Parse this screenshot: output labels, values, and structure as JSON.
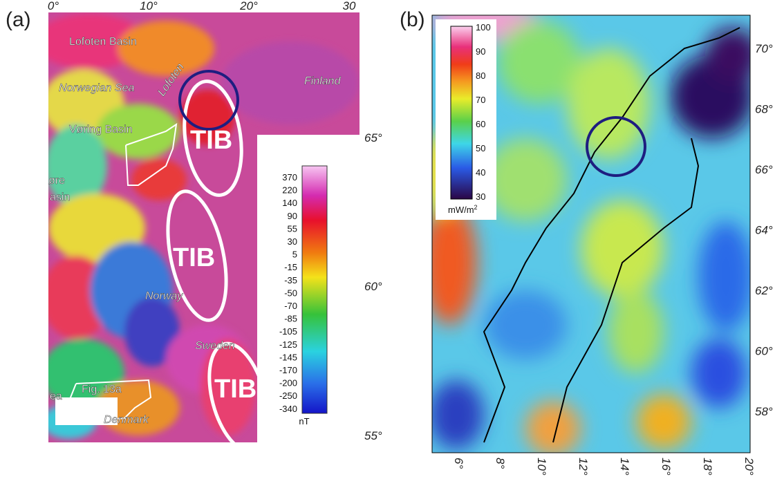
{
  "panel_a": {
    "label": "(a)",
    "lon_ticks": [
      "0°",
      "10°",
      "20°",
      "30"
    ],
    "lat_ticks": [
      "65°",
      "60°",
      "55°"
    ],
    "map_labels": [
      "Lofoten Basin",
      "Norwegian Sea",
      "Lofoten",
      "Finland",
      "Vøring Basin",
      "øre",
      "asin",
      "TIB",
      "TIB",
      "TIB",
      "Norway",
      "Sweden",
      "Denmark",
      "Fig. 13a",
      "ea"
    ],
    "colorbar": {
      "ticks": [
        "370",
        "220",
        "140",
        "90",
        "55",
        "30",
        "5",
        "-15",
        "-35",
        "-50",
        "-70",
        "-85",
        "-105",
        "-125",
        "-145",
        "-170",
        "-200",
        "-250",
        "-340"
      ],
      "unit": "nT"
    }
  },
  "panel_b": {
    "label": "(b)",
    "lat_ticks": [
      "70°",
      "68°",
      "66°",
      "64°",
      "62°",
      "60°",
      "58°"
    ],
    "lon_ticks": [
      "6°",
      "8°",
      "10°",
      "12°",
      "14°",
      "16°",
      "18°",
      "20°"
    ],
    "colorbar": {
      "ticks": [
        "100",
        "90",
        "80",
        "70",
        "60",
        "50",
        "40",
        "30"
      ],
      "unit": "mW/m",
      "unit_sup": "2"
    }
  }
}
